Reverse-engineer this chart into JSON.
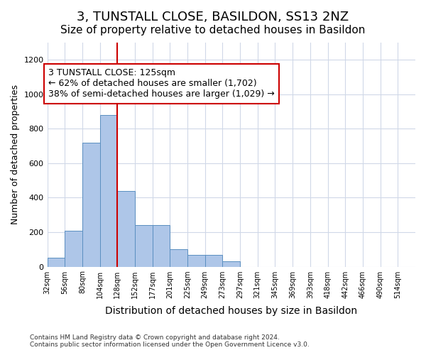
{
  "title": "3, TUNSTALL CLOSE, BASILDON, SS13 2NZ",
  "subtitle": "Size of property relative to detached houses in Basildon",
  "xlabel": "Distribution of detached houses by size in Basildon",
  "ylabel": "Number of detached properties",
  "footer_line1": "Contains HM Land Registry data © Crown copyright and database right 2024.",
  "footer_line2": "Contains public sector information licensed under the Open Government Licence v3.0.",
  "bin_labels": [
    "32sqm",
    "56sqm",
    "80sqm",
    "104sqm",
    "128sqm",
    "152sqm",
    "177sqm",
    "201sqm",
    "225sqm",
    "249sqm",
    "273sqm",
    "297sqm",
    "321sqm",
    "345sqm",
    "369sqm",
    "393sqm",
    "418sqm",
    "442sqm",
    "466sqm",
    "490sqm",
    "514sqm"
  ],
  "bar_values": [
    50,
    210,
    720,
    880,
    440,
    240,
    240,
    100,
    70,
    70,
    30,
    0,
    0,
    0,
    0,
    0,
    0,
    0,
    0,
    0,
    0
  ],
  "bar_color": "#aec6e8",
  "bar_edge_color": "#5a8fc0",
  "ylim": [
    0,
    1300
  ],
  "yticks": [
    0,
    200,
    400,
    600,
    800,
    1000,
    1200
  ],
  "property_bin_index": 4,
  "vline_color": "#cc0000",
  "annotation_text": "3 TUNSTALL CLOSE: 125sqm\n← 62% of detached houses are smaller (1,702)\n38% of semi-detached houses are larger (1,029) →",
  "annotation_box_color": "#cc0000",
  "bg_color": "#ffffff",
  "grid_color": "#d0d8e8",
  "title_fontsize": 13,
  "subtitle_fontsize": 11,
  "annotation_fontsize": 9,
  "xlabel_fontsize": 10,
  "ylabel_fontsize": 9
}
